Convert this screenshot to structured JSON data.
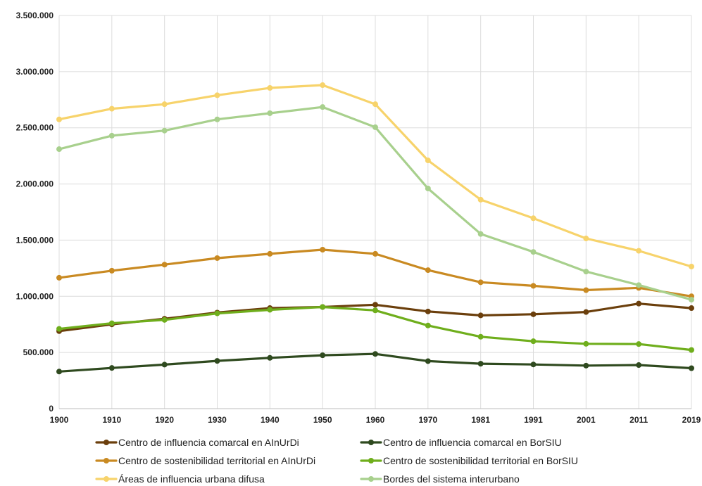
{
  "chart_data": {
    "type": "line",
    "title": "",
    "xlabel": "",
    "ylabel": "",
    "categories": [
      "1900",
      "1910",
      "1920",
      "1930",
      "1940",
      "1950",
      "1960",
      "1970",
      "1981",
      "1991",
      "2001",
      "2011",
      "2019"
    ],
    "ylim": [
      0,
      3500000
    ],
    "yticks": [
      0,
      500000,
      1000000,
      1500000,
      2000000,
      2500000,
      3000000,
      3500000
    ],
    "ytick_labels": [
      "0",
      "500.000",
      "1.000.000",
      "1.500.000",
      "2.000.000",
      "2.500.000",
      "3.000.000",
      "3.500.000"
    ],
    "grid": true,
    "legend_position": "bottom",
    "series": [
      {
        "name": "Centro de influencia comarcal en AInUrDi",
        "color": "#6b3f0c",
        "values": [
          690000,
          750000,
          800000,
          855000,
          895000,
          905000,
          925000,
          865000,
          830000,
          840000,
          860000,
          935000,
          895000
        ]
      },
      {
        "name": "Centro de influencia comarcal en BorSIU",
        "color": "#2f4a1f",
        "values": [
          330000,
          362000,
          392000,
          425000,
          452000,
          475000,
          487000,
          423000,
          400000,
          393000,
          383000,
          388000,
          360000
        ]
      },
      {
        "name": "Centro de sostenibilidad territorial en AInUrDi",
        "color": "#c98a22",
        "values": [
          1165000,
          1228000,
          1282000,
          1340000,
          1378000,
          1415000,
          1378000,
          1233000,
          1125000,
          1093000,
          1055000,
          1075000,
          1000000
        ]
      },
      {
        "name": "Centro de sostenibilidad territorial en BorSIU",
        "color": "#6fae1c",
        "values": [
          710000,
          760000,
          790000,
          848000,
          880000,
          905000,
          875000,
          740000,
          640000,
          600000,
          577000,
          575000,
          522000
        ]
      },
      {
        "name": "Áreas de influencia urbana difusa",
        "color": "#f7d36b",
        "values": [
          2575000,
          2670000,
          2710000,
          2790000,
          2855000,
          2880000,
          2710000,
          2210000,
          1860000,
          1695000,
          1515000,
          1405000,
          1265000
        ]
      },
      {
        "name": "Bordes del sistema interurbano",
        "color": "#a8d08d",
        "values": [
          2310000,
          2430000,
          2475000,
          2575000,
          2630000,
          2685000,
          2505000,
          1960000,
          1555000,
          1395000,
          1220000,
          1100000,
          970000
        ]
      }
    ]
  }
}
